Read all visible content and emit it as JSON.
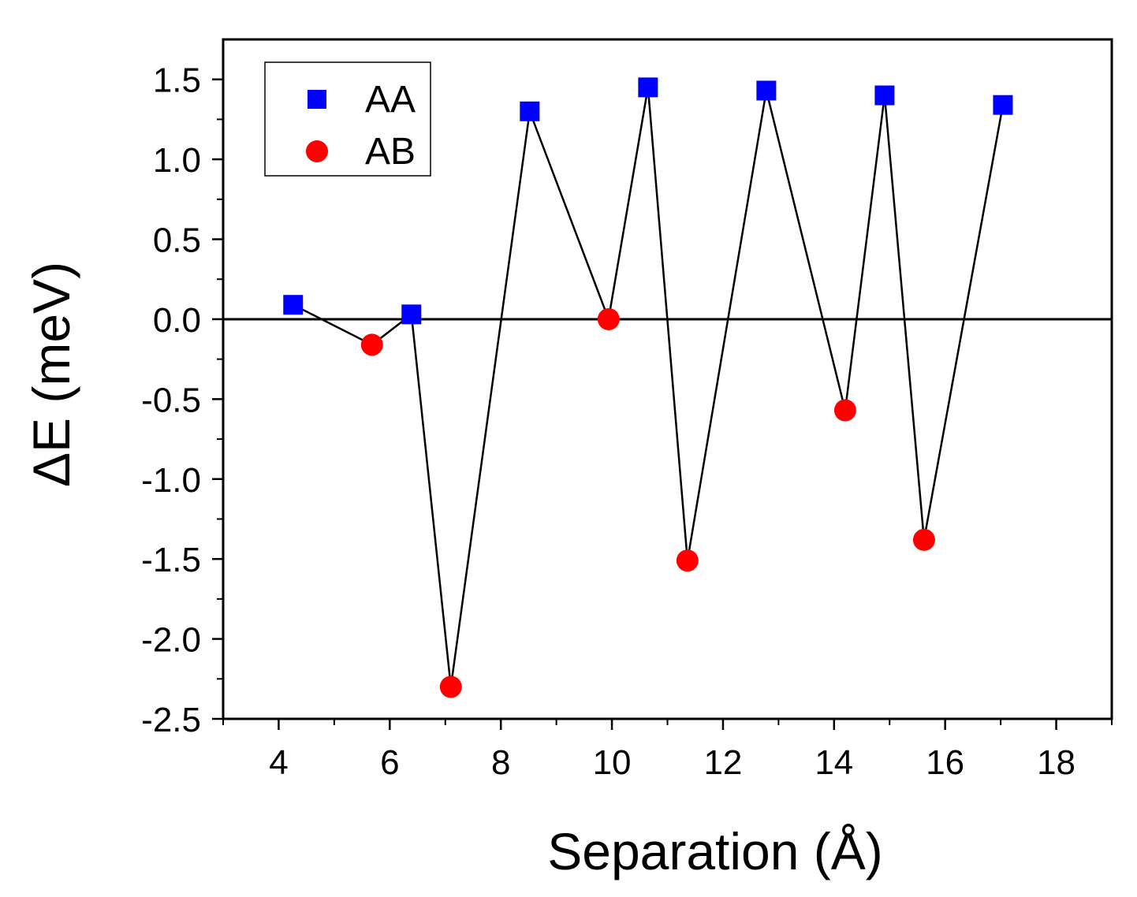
{
  "chart_data": {
    "type": "scatter",
    "title": "",
    "xlabel": "Separation (Å)",
    "ylabel": "ΔE (meV)",
    "xlim": [
      3,
      19
    ],
    "ylim": [
      -2.5,
      1.75
    ],
    "xticks": [
      4,
      6,
      8,
      10,
      12,
      14,
      16,
      18
    ],
    "xtick_labels": [
      "4",
      "6",
      "8",
      "10",
      "12",
      "14",
      "16",
      "18"
    ],
    "yticks": [
      1.5,
      1.0,
      0.5,
      0.0,
      -0.5,
      -1.0,
      -1.5,
      -2.0,
      -2.5
    ],
    "ytick_labels": [
      "1.5",
      "1.0",
      "0.5",
      "0.0",
      "-0.5",
      "-1.0",
      "-1.5",
      "-2.0",
      "-2.5"
    ],
    "zero_line": 0.0,
    "grid": false,
    "legend_position": "top-left",
    "connecting_line": {
      "color": "#000000",
      "x": [
        4.26,
        5.68,
        6.39,
        7.1,
        8.52,
        9.94,
        10.65,
        11.36,
        12.78,
        14.2,
        14.91,
        15.62,
        17.04
      ],
      "y": [
        0.09,
        -0.16,
        0.03,
        -2.3,
        1.3,
        0.0,
        1.45,
        -1.51,
        1.43,
        -0.57,
        1.4,
        -1.38,
        1.34
      ]
    },
    "series": [
      {
        "name": "AA",
        "marker": "square",
        "color": "#0000ff",
        "x": [
          4.26,
          6.39,
          8.52,
          10.65,
          12.78,
          14.91,
          17.04
        ],
        "y": [
          0.09,
          0.03,
          1.3,
          1.45,
          1.43,
          1.4,
          1.34
        ]
      },
      {
        "name": "AB",
        "marker": "circle",
        "color": "#ff0000",
        "x": [
          5.68,
          7.1,
          9.94,
          11.36,
          14.2,
          15.62
        ],
        "y": [
          -0.16,
          -2.3,
          0.0,
          -1.51,
          -0.57,
          -1.38
        ]
      }
    ]
  }
}
